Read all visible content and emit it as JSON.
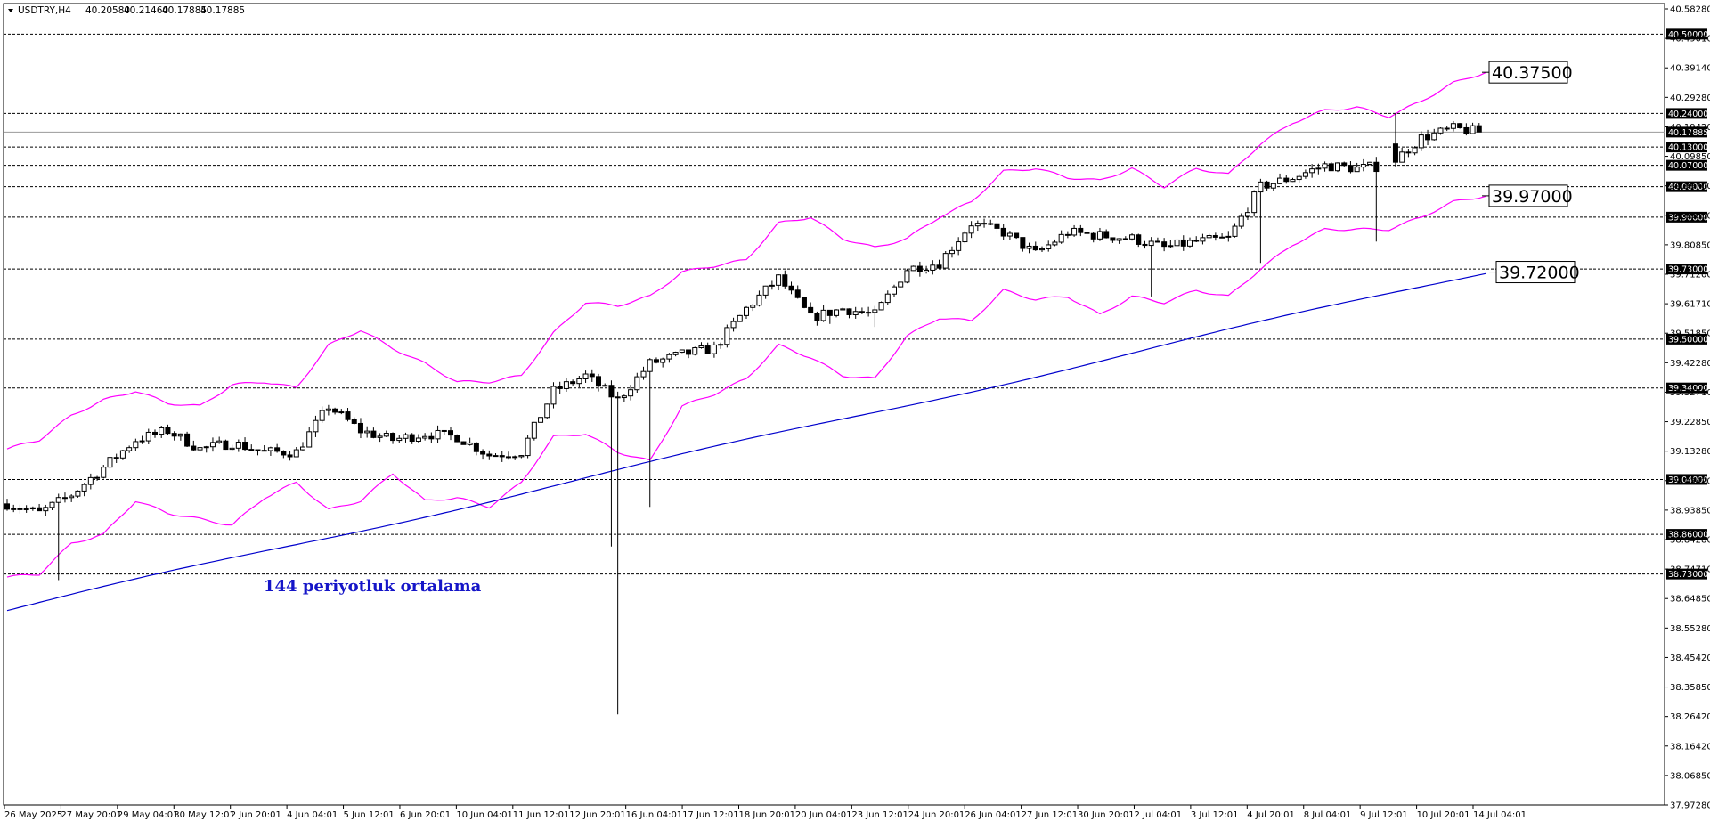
{
  "header": {
    "symbol": "USDTRY,H4",
    "open": "40.20580",
    "high": "40.21460",
    "low": "40.17885",
    "close": "40.17885"
  },
  "annotation": {
    "text": "144 periyotluk ortalama",
    "color": "#1515c8"
  },
  "colors": {
    "band": "#ff00ff",
    "ma": "#0000cc",
    "candle": "#000000",
    "background": "#ffffff",
    "level": "#000000",
    "current_price": "#999999"
  },
  "chart_data": {
    "type": "candlestick",
    "title": "",
    "ylim": [
      37.9728,
      40.5828
    ],
    "y_axis_ticks": [
      "40.58280",
      "40.49010",
      "40.39140",
      "40.29280",
      "40.19420",
      "40.09850",
      "39.99700",
      "39.89850",
      "39.80850",
      "39.71200",
      "39.61710",
      "39.51850",
      "39.42280",
      "39.32710",
      "39.22850",
      "39.13280",
      "39.03420",
      "38.93850",
      "38.84280",
      "38.74710",
      "38.64850",
      "38.55280",
      "38.45420",
      "38.35850",
      "38.26420",
      "38.16420",
      "38.06850",
      "37.97280"
    ],
    "x_axis_ticks": [
      "26 May 2025",
      "27 May 20:01",
      "29 May 04:01",
      "30 May 12:01",
      "2 Jun 20:01",
      "4 Jun 04:01",
      "5 Jun 12:01",
      "6 Jun 20:01",
      "10 Jun 04:01",
      "11 Jun 12:01",
      "12 Jun 20:01",
      "16 Jun 04:01",
      "17 Jun 12:01",
      "18 Jun 20:01",
      "20 Jun 04:01",
      "23 Jun 12:01",
      "24 Jun 20:01",
      "26 Jun 04:01",
      "27 Jun 12:01",
      "30 Jun 20:01",
      "2 Jul 04:01",
      "3 Jul 12:01",
      "4 Jul 20:01",
      "8 Jul 04:01",
      "9 Jul 12:01",
      "10 Jul 20:01",
      "14 Jul 04:01"
    ],
    "horizontal_levels": [
      "40.50000",
      "40.24000",
      "40.13000",
      "40.07000",
      "40.00000",
      "39.90000",
      "39.73000",
      "39.50000",
      "39.34000",
      "39.04000",
      "38.86000",
      "38.73000"
    ],
    "current_price": "40.17885",
    "callouts": [
      {
        "label": "40.37500",
        "value": 40.375
      },
      {
        "label": "39.97000",
        "value": 39.97
      },
      {
        "label": "39.72000",
        "value": 39.72
      }
    ],
    "moving_average": {
      "period": 144,
      "start": 38.61,
      "end": 39.72
    },
    "band_anchors": {
      "upper": [
        [
          0,
          39.14
        ],
        [
          5,
          39.17
        ],
        [
          10,
          39.25
        ],
        [
          15,
          39.3
        ],
        [
          20,
          39.33
        ],
        [
          25,
          39.29
        ],
        [
          30,
          39.28
        ],
        [
          35,
          39.35
        ],
        [
          40,
          39.36
        ],
        [
          45,
          39.34
        ],
        [
          50,
          39.48
        ],
        [
          55,
          39.53
        ],
        [
          60,
          39.47
        ],
        [
          65,
          39.42
        ],
        [
          70,
          39.36
        ],
        [
          75,
          39.36
        ],
        [
          80,
          39.38
        ],
        [
          85,
          39.52
        ],
        [
          90,
          39.62
        ],
        [
          95,
          39.61
        ],
        [
          100,
          39.64
        ],
        [
          105,
          39.72
        ],
        [
          110,
          39.74
        ],
        [
          115,
          39.76
        ],
        [
          120,
          39.88
        ],
        [
          125,
          39.9
        ],
        [
          130,
          39.83
        ],
        [
          135,
          39.8
        ],
        [
          140,
          39.83
        ],
        [
          145,
          39.9
        ],
        [
          150,
          39.95
        ],
        [
          155,
          40.05
        ],
        [
          160,
          40.06
        ],
        [
          165,
          40.03
        ],
        [
          170,
          40.02
        ],
        [
          175,
          40.06
        ],
        [
          180,
          40.0
        ],
        [
          185,
          40.06
        ],
        [
          190,
          40.04
        ],
        [
          195,
          40.14
        ],
        [
          200,
          40.21
        ],
        [
          205,
          40.25
        ],
        [
          210,
          40.26
        ],
        [
          215,
          40.23
        ],
        [
          220,
          40.28
        ],
        [
          225,
          40.34
        ],
        [
          230,
          40.375
        ]
      ],
      "lower": [
        [
          0,
          38.72
        ],
        [
          5,
          38.73
        ],
        [
          10,
          38.83
        ],
        [
          15,
          38.86
        ],
        [
          20,
          38.97
        ],
        [
          25,
          38.93
        ],
        [
          30,
          38.91
        ],
        [
          35,
          38.89
        ],
        [
          40,
          38.98
        ],
        [
          45,
          39.03
        ],
        [
          50,
          38.94
        ],
        [
          55,
          38.97
        ],
        [
          60,
          39.06
        ],
        [
          65,
          38.97
        ],
        [
          70,
          38.98
        ],
        [
          75,
          38.95
        ],
        [
          80,
          39.03
        ],
        [
          85,
          39.18
        ],
        [
          90,
          39.19
        ],
        [
          95,
          39.13
        ],
        [
          100,
          39.1
        ],
        [
          105,
          39.28
        ],
        [
          110,
          39.32
        ],
        [
          115,
          39.37
        ],
        [
          120,
          39.48
        ],
        [
          125,
          39.44
        ],
        [
          130,
          39.38
        ],
        [
          135,
          39.37
        ],
        [
          140,
          39.51
        ],
        [
          145,
          39.57
        ],
        [
          150,
          39.56
        ],
        [
          155,
          39.66
        ],
        [
          160,
          39.63
        ],
        [
          165,
          39.64
        ],
        [
          170,
          39.58
        ],
        [
          175,
          39.64
        ],
        [
          180,
          39.62
        ],
        [
          185,
          39.66
        ],
        [
          190,
          39.64
        ],
        [
          195,
          39.73
        ],
        [
          200,
          39.81
        ],
        [
          205,
          39.86
        ],
        [
          210,
          39.86
        ],
        [
          215,
          39.86
        ],
        [
          220,
          39.9
        ],
        [
          225,
          39.95
        ],
        [
          230,
          39.97
        ]
      ]
    },
    "price_anchors": [
      [
        0,
        38.96
      ],
      [
        5,
        38.93
      ],
      [
        10,
        38.99
      ],
      [
        15,
        39.08
      ],
      [
        20,
        39.17
      ],
      [
        25,
        39.2
      ],
      [
        30,
        39.14
      ],
      [
        35,
        39.16
      ],
      [
        40,
        39.13
      ],
      [
        45,
        39.13
      ],
      [
        50,
        39.28
      ],
      [
        55,
        39.2
      ],
      [
        60,
        39.17
      ],
      [
        65,
        39.19
      ],
      [
        70,
        39.18
      ],
      [
        75,
        39.12
      ],
      [
        80,
        39.13
      ],
      [
        85,
        39.33
      ],
      [
        90,
        39.38
      ],
      [
        95,
        39.3
      ],
      [
        100,
        39.42
      ],
      [
        105,
        39.45
      ],
      [
        110,
        39.47
      ],
      [
        115,
        39.6
      ],
      [
        120,
        39.7
      ],
      [
        125,
        39.57
      ],
      [
        130,
        39.6
      ],
      [
        135,
        39.58
      ],
      [
        140,
        39.73
      ],
      [
        145,
        39.75
      ],
      [
        150,
        39.88
      ],
      [
        155,
        39.85
      ],
      [
        160,
        39.78
      ],
      [
        165,
        39.85
      ],
      [
        170,
        39.84
      ],
      [
        175,
        39.83
      ],
      [
        180,
        39.8
      ],
      [
        185,
        39.82
      ],
      [
        190,
        39.83
      ],
      [
        195,
        40.0
      ],
      [
        200,
        40.03
      ],
      [
        205,
        40.07
      ],
      [
        210,
        40.06
      ],
      [
        215,
        40.07
      ],
      [
        220,
        40.16
      ],
      [
        225,
        40.19
      ],
      [
        229,
        40.18
      ]
    ],
    "wick_events": [
      {
        "bar": 95,
        "low": 38.27
      },
      {
        "bar": 94,
        "low": 38.82
      },
      {
        "bar": 100,
        "low": 38.95
      },
      {
        "bar": 8,
        "low": 38.71
      },
      {
        "bar": 128,
        "low": 39.55
      },
      {
        "bar": 135,
        "low": 39.54
      },
      {
        "bar": 178,
        "low": 39.64
      },
      {
        "bar": 195,
        "low": 39.75
      },
      {
        "bar": 213,
        "low": 39.82
      },
      {
        "bar": 213,
        "high": 40.07
      },
      {
        "bar": 216,
        "high": 40.24
      }
    ]
  }
}
